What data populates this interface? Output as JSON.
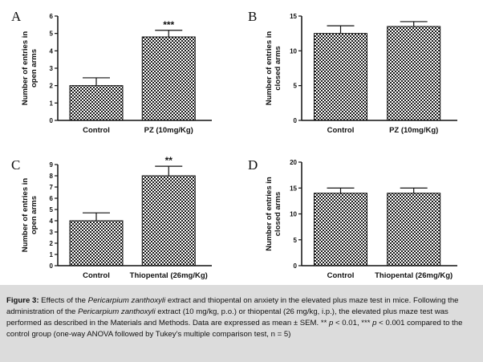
{
  "chart_data": [
    {
      "type": "bar",
      "panel_label": "A",
      "categories": [
        "Control",
        "PZ (10mg/Kg)"
      ],
      "values": [
        2.0,
        4.8
      ],
      "errors": [
        0.45,
        0.38
      ],
      "significance": [
        "",
        "***"
      ],
      "ylabel": "Number of entries in open arms",
      "ylim": [
        0,
        6
      ],
      "yticks": [
        0,
        1,
        2,
        3,
        4,
        5,
        6
      ]
    },
    {
      "type": "bar",
      "panel_label": "B",
      "categories": [
        "Control",
        "PZ (10mg/Kg)"
      ],
      "values": [
        12.5,
        13.5
      ],
      "errors": [
        1.1,
        0.7
      ],
      "significance": [
        "",
        ""
      ],
      "ylabel": "Number of entries in closed arms",
      "ylim": [
        0,
        15
      ],
      "yticks": [
        0,
        5,
        10,
        15
      ]
    },
    {
      "type": "bar",
      "panel_label": "C",
      "categories": [
        "Control",
        "Thiopental (26mg/Kg)"
      ],
      "values": [
        4.0,
        8.0
      ],
      "errors": [
        0.7,
        0.85
      ],
      "significance": [
        "",
        "**"
      ],
      "ylabel": "Number of entries in open arms",
      "ylim": [
        0,
        9
      ],
      "yticks": [
        0,
        1,
        2,
        3,
        4,
        5,
        6,
        7,
        8,
        9
      ]
    },
    {
      "type": "bar",
      "panel_label": "D",
      "categories": [
        "Control",
        "Thiopental (26mg/Kg)"
      ],
      "values": [
        14.0,
        14.0
      ],
      "errors": [
        1.0,
        1.0
      ],
      "significance": [
        "",
        ""
      ],
      "ylabel": "Number of entries in closed arms",
      "ylim": [
        0,
        20
      ],
      "yticks": [
        0,
        5,
        10,
        15,
        20
      ]
    }
  ],
  "caption": {
    "fig_label": "Figure 3:",
    "t1": " Effects of the ",
    "species1": "Pericarpium zanthoxyli",
    "t2": " extract and thiopental on anxiety in the elevated plus maze test in mice. Following the administration of the ",
    "species2": "Pericarpium zanthoxyli",
    "t3": " extract (10 mg/kg, p.o.) or thiopental (26 mg/kg, i.p.), the elevated plus maze test was performed as described in the Materials and Methods. Data are expressed as mean ± SEM. ** ",
    "p1": "p",
    "t4": " < 0.01, *** ",
    "p2": "p",
    "t5": " < 0.001 compared to the control group (one-way ANOVA followed by Tukey's multiple comparison test, n = 5)"
  }
}
